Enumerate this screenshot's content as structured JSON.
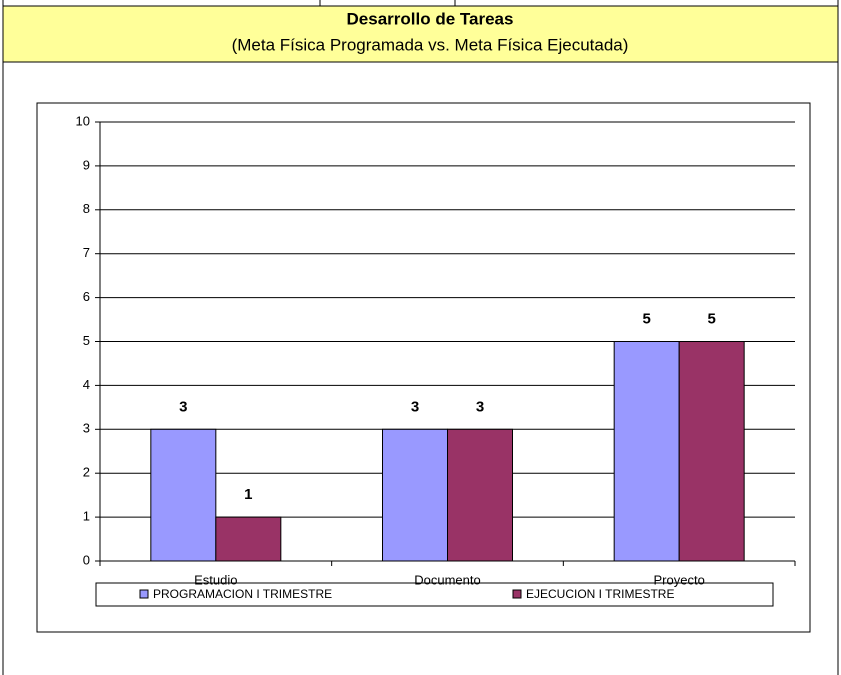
{
  "header": {
    "title": "Desarrollo de Tareas",
    "subtitle": "(Meta Física Programada vs. Meta Física Ejecutada)"
  },
  "chart_data": {
    "type": "bar",
    "categories": [
      "Estudio",
      "Documento",
      "Proyecto"
    ],
    "series": [
      {
        "name": "PROGRAMACION I TRIMESTRE",
        "color": "#9999ff",
        "values": [
          3,
          3,
          5
        ]
      },
      {
        "name": "EJECUCION I TRIMESTRE",
        "color": "#993366",
        "values": [
          1,
          3,
          5
        ]
      }
    ],
    "ylim": [
      0,
      10
    ],
    "yticks": [
      0,
      1,
      2,
      3,
      4,
      5,
      6,
      7,
      8,
      9,
      10
    ],
    "grid": true,
    "legend": "bottom"
  }
}
